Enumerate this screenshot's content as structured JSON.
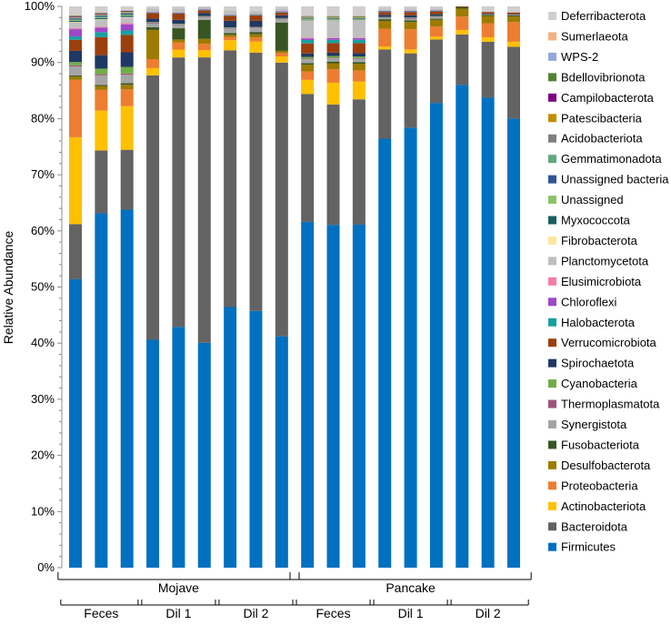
{
  "chart_data": {
    "type": "stacked-bar",
    "title": "",
    "xlabel": "",
    "ylabel": "Relative Abundance",
    "ylim": [
      0,
      100
    ],
    "yticks": [
      "0%",
      "10%",
      "20%",
      "30%",
      "40%",
      "50%",
      "60%",
      "70%",
      "80%",
      "90%",
      "100%"
    ],
    "legend_position": "right",
    "groups": [
      {
        "label": "Mojave",
        "subgroups": [
          "Feces",
          "Dil 1",
          "Dil 2"
        ]
      },
      {
        "label": "Pancake",
        "subgroups": [
          "Feces",
          "Dil 1",
          "Dil 2"
        ]
      }
    ],
    "samples": [
      "Mojave Feces 1",
      "Mojave Feces 2",
      "Mojave Feces 3",
      "Mojave Dil 1 1",
      "Mojave Dil 1 2",
      "Mojave Dil 1 3",
      "Mojave Dil 2 1",
      "Mojave Dil 2 2",
      "Mojave Dil 2 3",
      "Pancake Feces 1",
      "Pancake Feces 2",
      "Pancake Feces 3",
      "Pancake Dil 1 1",
      "Pancake Dil 1 2",
      "Pancake Dil 1 3",
      "Pancake Dil 2 1",
      "Pancake Dil 2 2",
      "Pancake Dil 2 3"
    ],
    "series": [
      {
        "name": "Firmicutes",
        "color": "#0070C0",
        "values": [
          51.8,
          63.2,
          63.9,
          40.6,
          42.9,
          40.1,
          46.9,
          46.1,
          41.6,
          61.6,
          61.5,
          61.6,
          76.8,
          78.7,
          82.8,
          86.0,
          83.8,
          80.0
        ]
      },
      {
        "name": "Bacteroidota",
        "color": "#636363",
        "values": [
          9.9,
          11.2,
          10.7,
          47.1,
          48.0,
          50.9,
          46.2,
          46.4,
          49.2,
          22.8,
          21.6,
          22.5,
          16.0,
          13.3,
          11.3,
          9.0,
          10.0,
          12.8
        ]
      },
      {
        "name": "Actinobacteriota",
        "color": "#FFC000",
        "values": [
          15.6,
          7.1,
          7.8,
          1.3,
          1.4,
          1.3,
          1.8,
          2.0,
          1.1,
          2.5,
          3.9,
          3.2,
          0.5,
          0.7,
          0.5,
          0.8,
          0.8,
          0.9
        ]
      },
      {
        "name": "Proteobacteria",
        "color": "#ED7D31",
        "values": [
          10.3,
          3.7,
          3.0,
          1.6,
          1.3,
          1.1,
          0.6,
          0.7,
          0.6,
          1.5,
          2.4,
          2.0,
          3.2,
          3.6,
          1.8,
          2.4,
          2.5,
          3.5
        ]
      },
      {
        "name": "Desulfobacterota",
        "color": "#9E7B00",
        "values": [
          0.6,
          0.7,
          0.8,
          5.2,
          0.5,
          0.9,
          0.4,
          0.6,
          0.4,
          1.2,
          1.1,
          1.2,
          1.4,
          1.3,
          1.2,
          1.4,
          1.3,
          1.0
        ]
      },
      {
        "name": "Fusobacteriota",
        "color": "#375623",
        "values": [
          0.2,
          0.2,
          0.3,
          0.5,
          2.0,
          3.4,
          0.3,
          0.4,
          5.1,
          0.3,
          0.3,
          0.3,
          0.3,
          0.3,
          0.2,
          0.3,
          0.2,
          0.2
        ]
      },
      {
        "name": "Synergistota",
        "color": "#A5A5A5",
        "values": [
          1.6,
          1.7,
          1.5,
          0.7,
          0.6,
          0.5,
          0.8,
          0.7,
          0.6,
          0.7,
          0.6,
          0.6,
          0.2,
          0.3,
          0.3,
          0.0,
          0.1,
          0.1
        ]
      },
      {
        "name": "Thermoplasmatota",
        "color": "#A0527A",
        "values": [
          0.2,
          0.2,
          0.2,
          0.1,
          0.1,
          0.1,
          0.1,
          0.1,
          0.1,
          0.1,
          0.1,
          0.1,
          0.1,
          0.1,
          0.1,
          0.0,
          0.0,
          0.0
        ]
      },
      {
        "name": "Cyanobacteria",
        "color": "#70AD47",
        "values": [
          0.6,
          1.0,
          1.2,
          0.1,
          0.1,
          0.1,
          0.1,
          0.1,
          0.1,
          0.3,
          0.3,
          0.3,
          0.1,
          0.1,
          0.1,
          0.0,
          0.0,
          0.0
        ]
      },
      {
        "name": "Spirochaetota",
        "color": "#203864",
        "values": [
          2.0,
          2.4,
          2.6,
          0.6,
          0.7,
          0.5,
          1.2,
          1.1,
          0.5,
          0.6,
          0.6,
          0.6,
          0.4,
          0.4,
          0.3,
          0.0,
          0.1,
          0.1
        ]
      },
      {
        "name": "Verrucomicrobiota",
        "color": "#9C3F0E",
        "values": [
          2.0,
          3.2,
          3.1,
          1.0,
          1.1,
          0.5,
          0.9,
          1.0,
          0.5,
          1.8,
          1.7,
          1.8,
          0.5,
          0.6,
          0.5,
          0.1,
          0.3,
          0.3
        ]
      },
      {
        "name": "Halobacterota",
        "color": "#16A0A0",
        "values": [
          0.6,
          0.9,
          0.8,
          0.1,
          0.1,
          0.1,
          0.1,
          0.1,
          0.1,
          0.6,
          0.6,
          0.6,
          0.1,
          0.1,
          0.1,
          0.0,
          0.0,
          0.0
        ]
      },
      {
        "name": "Chloroflexi",
        "color": "#9E48C9",
        "values": [
          1.3,
          0.8,
          1.1,
          0.1,
          0.1,
          0.1,
          0.1,
          0.1,
          0.1,
          0.3,
          0.3,
          0.3,
          0.1,
          0.1,
          0.1,
          0.0,
          0.0,
          0.0
        ]
      },
      {
        "name": "Elusimicrobiota",
        "color": "#F37DA6",
        "values": [
          0.2,
          0.2,
          0.2,
          0.0,
          0.0,
          0.0,
          0.0,
          0.0,
          0.0,
          0.1,
          0.1,
          0.1,
          0.0,
          0.0,
          0.0,
          0.0,
          0.0,
          0.0
        ]
      },
      {
        "name": "Planctomycetota",
        "color": "#BFBFBF",
        "values": [
          1.0,
          1.2,
          1.0,
          0.6,
          0.7,
          0.4,
          0.8,
          0.6,
          0.5,
          3.0,
          3.0,
          3.0,
          0.4,
          0.4,
          0.3,
          0.0,
          0.1,
          0.2
        ]
      },
      {
        "name": "Fibrobacterota",
        "color": "#FFE699",
        "values": [
          0.1,
          0.1,
          0.1,
          0.0,
          0.0,
          0.0,
          0.0,
          0.0,
          0.0,
          0.1,
          0.1,
          0.1,
          0.0,
          0.0,
          0.0,
          0.0,
          0.0,
          0.0
        ]
      },
      {
        "name": "Myxococcota",
        "color": "#1B5E5E",
        "values": [
          0.2,
          0.2,
          0.2,
          0.0,
          0.0,
          0.0,
          0.0,
          0.0,
          0.0,
          0.1,
          0.1,
          0.1,
          0.0,
          0.0,
          0.0,
          0.0,
          0.0,
          0.0
        ]
      },
      {
        "name": "Unassigned",
        "color": "#8CC36A",
        "values": [
          0.2,
          0.2,
          0.2,
          0.0,
          0.0,
          0.0,
          0.0,
          0.0,
          0.0,
          0.1,
          0.1,
          0.1,
          0.0,
          0.0,
          0.0,
          0.0,
          0.0,
          0.0
        ]
      },
      {
        "name": "Unassigned bacteria",
        "color": "#2F5597",
        "values": [
          0.2,
          0.2,
          0.2,
          0.0,
          0.0,
          0.0,
          0.0,
          0.0,
          0.0,
          0.1,
          0.1,
          0.1,
          0.0,
          0.0,
          0.0,
          0.0,
          0.0,
          0.0
        ]
      },
      {
        "name": "Gemmatimonadota",
        "color": "#5FAA7A",
        "values": [
          0.1,
          0.1,
          0.1,
          0.0,
          0.0,
          0.0,
          0.0,
          0.0,
          0.0,
          0.1,
          0.1,
          0.1,
          0.0,
          0.0,
          0.0,
          0.0,
          0.0,
          0.0
        ]
      },
      {
        "name": "Acidobacteriota",
        "color": "#7F7F7F",
        "values": [
          0.1,
          0.1,
          0.1,
          0.0,
          0.0,
          0.0,
          0.0,
          0.0,
          0.0,
          0.1,
          0.1,
          0.1,
          0.0,
          0.0,
          0.0,
          0.0,
          0.0,
          0.0
        ]
      },
      {
        "name": "Patescibacteria",
        "color": "#BF9000",
        "values": [
          0.1,
          0.1,
          0.1,
          0.0,
          0.0,
          0.0,
          0.0,
          0.0,
          0.0,
          0.1,
          0.1,
          0.1,
          0.0,
          0.0,
          0.0,
          0.0,
          0.0,
          0.0
        ]
      },
      {
        "name": "Campilobacterota",
        "color": "#7E0082",
        "values": [
          0.1,
          0.1,
          0.1,
          0.0,
          0.0,
          0.0,
          0.0,
          0.0,
          0.0,
          0.0,
          0.0,
          0.0,
          0.0,
          0.0,
          0.0,
          0.0,
          0.0,
          0.0
        ]
      },
      {
        "name": "Bdellovibrionota",
        "color": "#548235",
        "values": [
          0.1,
          0.1,
          0.1,
          0.0,
          0.0,
          0.0,
          0.0,
          0.0,
          0.0,
          0.1,
          0.1,
          0.1,
          0.0,
          0.0,
          0.0,
          0.0,
          0.0,
          0.0
        ]
      },
      {
        "name": "WPS-2",
        "color": "#8FAADC",
        "values": [
          0.1,
          0.1,
          0.1,
          0.0,
          0.0,
          0.0,
          0.0,
          0.0,
          0.0,
          0.1,
          0.1,
          0.1,
          0.0,
          0.0,
          0.0,
          0.0,
          0.0,
          0.0
        ]
      },
      {
        "name": "Sumerlaeota",
        "color": "#F4B183",
        "values": [
          0.1,
          0.1,
          0.1,
          0.0,
          0.0,
          0.0,
          0.0,
          0.0,
          0.0,
          0.1,
          0.1,
          0.1,
          0.0,
          0.0,
          0.0,
          0.0,
          0.0,
          0.0
        ]
      },
      {
        "name": "Deferribacterota",
        "color": "#D0CECE",
        "values": [
          1.5,
          1.0,
          0.6,
          0.4,
          0.4,
          0.1,
          0.7,
          0.8,
          0.4,
          1.6,
          1.6,
          1.6,
          0.4,
          0.4,
          0.4,
          0.0,
          0.9,
          0.9
        ]
      }
    ]
  }
}
